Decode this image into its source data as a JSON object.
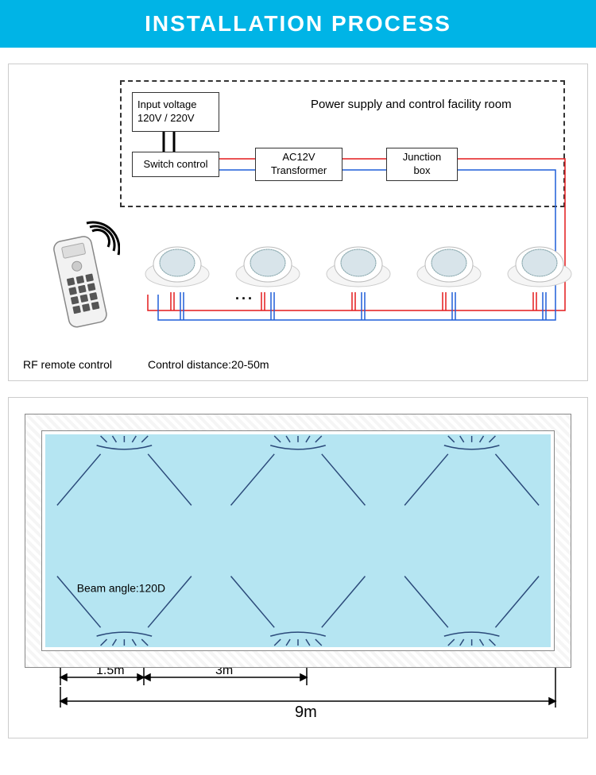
{
  "header": {
    "text": "INSTALLATION PROCESS",
    "bg": "#00b4e6",
    "fg": "#ffffff"
  },
  "diagram1": {
    "roomLabel": "Power supply and control facility room",
    "inputVoltage": "Input voltage\n120V / 220V",
    "switchControl": "Switch control",
    "transformer": "AC12V\nTransformer",
    "junctionBox": "Junction\nbox",
    "remoteLabel": "RF remote control",
    "distanceLabel": "Control distance:20-50m",
    "wireColors": {
      "live": "#e41a1c",
      "neutral": "#1f5ed8"
    },
    "lightCount": 5,
    "ellipsis": "..."
  },
  "diagram2": {
    "beamLabel": "Beam angle:120D",
    "d1": "1.5m",
    "d2": "3m",
    "total": "9m",
    "waterColor": "#b5e5f2",
    "lineColor": "#2b4a7a"
  }
}
